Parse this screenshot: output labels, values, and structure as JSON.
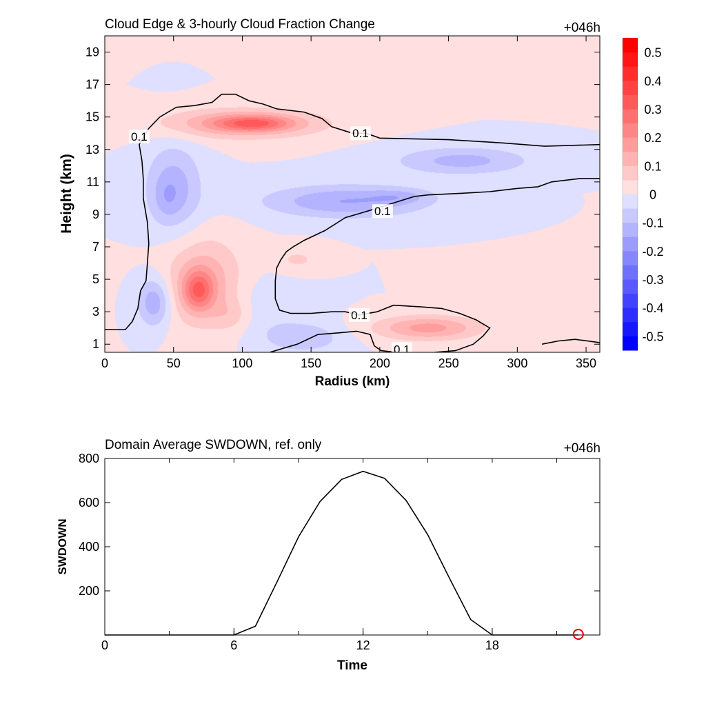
{
  "chart_data": [
    {
      "type": "heatmap",
      "title": "Cloud Edge & 3-hourly Cloud Fraction Change",
      "time_label": "+046h",
      "xlabel": "Radius (km)",
      "ylabel": "Height (km)",
      "xlim": [
        0,
        360
      ],
      "ylim": [
        0.5,
        20
      ],
      "x_ticks": [
        0,
        50,
        100,
        150,
        200,
        250,
        300,
        350
      ],
      "y_ticks": [
        1,
        3,
        5,
        7,
        9,
        11,
        13,
        15,
        17,
        19
      ],
      "colorbar": {
        "min": -0.55,
        "max": 0.55,
        "step": 0.05,
        "labels": [
          "0.5",
          "0.4",
          "0.3",
          "0.2",
          "0.1",
          "0",
          "-0.1",
          "-0.2",
          "-0.3",
          "-0.4",
          "-0.5"
        ],
        "label_values": [
          0.5,
          0.4,
          0.3,
          0.2,
          0.1,
          0,
          -0.1,
          -0.2,
          -0.3,
          -0.4,
          -0.5
        ],
        "positive_color": "#ff0000",
        "negative_color": "#0000ff"
      },
      "features": [
        {
          "x": 108,
          "y": 14.6,
          "rx": 26,
          "ry": 0.45,
          "value": 0.18
        },
        {
          "x": 100,
          "y": 14.6,
          "rx": 58,
          "ry": 0.9,
          "value": 0.17
        },
        {
          "x": 68,
          "y": 4.3,
          "rx": 11,
          "ry": 1.2,
          "value": 0.2
        },
        {
          "x": 72,
          "y": 4.8,
          "rx": 28,
          "ry": 2.7,
          "value": 0.14
        },
        {
          "x": 92,
          "y": 2.8,
          "rx": 14,
          "ry": 1.0,
          "value": 0.06
        },
        {
          "x": 140,
          "y": 6.2,
          "rx": 18,
          "ry": 0.8,
          "value": 0.06
        },
        {
          "x": 235,
          "y": 2.0,
          "rx": 38,
          "ry": 0.75,
          "value": 0.17
        },
        {
          "x": 50,
          "y": 10.6,
          "rx": 20,
          "ry": 2.6,
          "value": -0.13
        },
        {
          "x": 45,
          "y": 10.0,
          "rx": 9,
          "ry": 1.2,
          "value": -0.04
        },
        {
          "x": 36,
          "y": 3.6,
          "rx": 12,
          "ry": 1.5,
          "value": -0.15
        },
        {
          "x": 175,
          "y": 9.8,
          "rx": 58,
          "ry": 1.0,
          "value": -0.15
        },
        {
          "x": 260,
          "y": 12.3,
          "rx": 48,
          "ry": 0.85,
          "value": -0.12
        },
        {
          "x": 215,
          "y": 10.1,
          "rx": 22,
          "ry": 0.45,
          "value": -0.06
        },
        {
          "x": 145,
          "y": 1.4,
          "rx": 28,
          "ry": 0.9,
          "value": -0.09
        },
        {
          "x": 115,
          "y": 3.3,
          "rx": 30,
          "ry": 2.0,
          "value": -0.04
        }
      ],
      "contours": [
        {
          "level": "0.1",
          "label_points": [
            [
              25,
              13.8
            ],
            [
              186,
              14.0
            ],
            [
              202,
              9.2
            ],
            [
              185,
              2.8
            ],
            [
              216,
              0.7
            ]
          ],
          "lines": [
            [
              [
                0,
                1.9
              ],
              [
                15,
                1.9
              ],
              [
                20,
                2.4
              ],
              [
                24,
                3.2
              ],
              [
                26,
                4.3
              ],
              [
                30,
                4.9
              ],
              [
                31,
                6.0
              ],
              [
                32,
                7.2
              ],
              [
                31,
                8.5
              ],
              [
                28,
                10.0
              ],
              [
                28,
                11.2
              ],
              [
                27,
                12.3
              ],
              [
                25,
                13.3
              ],
              [
                32,
                14.3
              ],
              [
                40,
                15.0
              ],
              [
                52,
                15.6
              ],
              [
                65,
                15.7
              ],
              [
                78,
                15.9
              ],
              [
                85,
                16.4
              ],
              [
                95,
                16.4
              ],
              [
                105,
                16.0
              ],
              [
                115,
                15.8
              ],
              [
                125,
                15.5
              ],
              [
                145,
                15.3
              ],
              [
                158,
                14.9
              ],
              [
                165,
                14.4
              ],
              [
                180,
                14.0
              ],
              [
                190,
                14.0
              ],
              [
                200,
                13.7
              ],
              [
                250,
                13.6
              ],
              [
                290,
                13.4
              ],
              [
                320,
                13.2
              ],
              [
                360,
                13.3
              ]
            ],
            [
              [
                360,
                11.2
              ],
              [
                345,
                11.2
              ],
              [
                325,
                11.0
              ],
              [
                315,
                10.7
              ],
              [
                300,
                10.6
              ],
              [
                280,
                10.4
              ],
              [
                260,
                10.3
              ],
              [
                235,
                10.2
              ],
              [
                225,
                10.1
              ],
              [
                210,
                9.7
              ],
              [
                195,
                9.3
              ],
              [
                175,
                8.8
              ],
              [
                160,
                8.0
              ],
              [
                145,
                7.4
              ],
              [
                137,
                7.0
              ],
              [
                132,
                6.7
              ],
              [
                128,
                6.2
              ],
              [
                125,
                5.7
              ],
              [
                124,
                4.9
              ],
              [
                124,
                3.8
              ],
              [
                127,
                3.1
              ],
              [
                135,
                2.9
              ],
              [
                150,
                2.9
              ],
              [
                165,
                3.0
              ],
              [
                175,
                3.0
              ],
              [
                185,
                2.8
              ],
              [
                198,
                3.0
              ],
              [
                210,
                3.4
              ],
              [
                230,
                3.3
              ],
              [
                245,
                3.2
              ],
              [
                258,
                2.9
              ],
              [
                270,
                2.5
              ],
              [
                280,
                2.0
              ],
              [
                275,
                1.5
              ],
              [
                268,
                1.0
              ],
              [
                255,
                0.6
              ],
              [
                240,
                0.5
              ]
            ],
            [
              [
                120,
                0.5
              ],
              [
                140,
                1.0
              ],
              [
                155,
                1.6
              ],
              [
                170,
                1.7
              ],
              [
                183,
                1.8
              ],
              [
                193,
                1.6
              ],
              [
                196,
                0.9
              ],
              [
                201,
                0.6
              ],
              [
                212,
                0.5
              ]
            ],
            [
              [
                318,
                1.0
              ],
              [
                330,
                1.2
              ],
              [
                342,
                1.3
              ],
              [
                360,
                1.1
              ]
            ]
          ]
        }
      ]
    },
    {
      "type": "line",
      "title": "Domain Average SWDOWN, ref. only",
      "time_label": "+046h",
      "xlabel": "Time",
      "ylabel": "SWDOWN",
      "xlim": [
        0,
        23
      ],
      "ylim": [
        0,
        800
      ],
      "x_ticks": [
        0,
        6,
        12,
        18
      ],
      "y_ticks": [
        200,
        400,
        600,
        800
      ],
      "x_minor_step": 3,
      "series": [
        {
          "x": [
            0,
            1,
            2,
            3,
            4,
            5,
            6,
            7,
            8,
            9,
            10,
            11,
            12,
            13,
            14,
            15,
            16,
            17,
            18,
            19,
            20,
            21,
            22
          ],
          "values": [
            0,
            0,
            0,
            0,
            0,
            0,
            0,
            40,
            240,
            445,
            605,
            705,
            742,
            710,
            610,
            455,
            260,
            70,
            0,
            0,
            0,
            0,
            0
          ]
        }
      ],
      "marker": {
        "x": 22,
        "y": 0,
        "color": "#dd0000"
      }
    }
  ]
}
